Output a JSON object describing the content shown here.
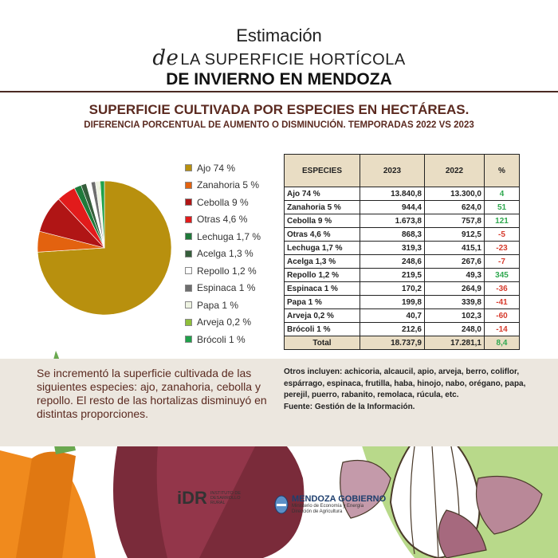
{
  "header": {
    "line1": "Estimación",
    "line2_prefix": "de",
    "line2": "LA SUPERFICIE HORTÍCOLA",
    "line3": "DE INVIERNO EN MENDOZA"
  },
  "chart_title": "SUPERFICIE CULTIVADA POR ESPECIES EN HECTÁREAS.",
  "chart_subtitle": "DIFERENCIA PORCENTUAL DE AUMENTO O DISMINUCIÓN. TEMPORADAS 2022 VS 2023",
  "chart_data": [
    {
      "type": "pie",
      "legend_position": "right",
      "slices": [
        {
          "label": "Ajo 74 %",
          "value": 74,
          "color": "#b8900e"
        },
        {
          "label": "Zanahoria 5 %",
          "value": 5,
          "color": "#e3620f"
        },
        {
          "label": "Cebolla 9 %",
          "value": 9,
          "color": "#b01515"
        },
        {
          "label": "Otras 4,6 %",
          "value": 4.6,
          "color": "#e21b1b"
        },
        {
          "label": "Lechuga 1,7 %",
          "value": 1.7,
          "color": "#1f7a3a"
        },
        {
          "label": "Acelga 1,3 %",
          "value": 1.3,
          "color": "#355e3b"
        },
        {
          "label": "Repollo 1,2 %",
          "value": 1.2,
          "color": "#ffffff"
        },
        {
          "label": "Espinaca 1 %",
          "value": 1,
          "color": "#6e6e6e"
        },
        {
          "label": "Papa 1 %",
          "value": 1,
          "color": "#eef3e2"
        },
        {
          "label": "Arveja 0,2 %",
          "value": 0.2,
          "color": "#8fbf3a"
        },
        {
          "label": "Brócoli 1 %",
          "value": 1,
          "color": "#1fa14a"
        }
      ]
    },
    {
      "type": "table",
      "columns": [
        "ESPECIES",
        "2023",
        "2022",
        "%"
      ],
      "rows": [
        {
          "species": "Ajo  74 %",
          "y2023": "13.840,8",
          "y2022": "13.300,0",
          "pct": "4",
          "trend": "pos"
        },
        {
          "species": "Zanahoria 5 %",
          "y2023": "944,4",
          "y2022": "624,0",
          "pct": "51",
          "trend": "pos"
        },
        {
          "species": "Cebolla 9 %",
          "y2023": "1.673,8",
          "y2022": "757,8",
          "pct": "121",
          "trend": "pos"
        },
        {
          "species": "Otras 4,6 %",
          "y2023": "868,3",
          "y2022": "912,5",
          "pct": "-5",
          "trend": "neg"
        },
        {
          "species": "Lechuga 1,7 %",
          "y2023": "319,3",
          "y2022": "415,1",
          "pct": "-23",
          "trend": "neg"
        },
        {
          "species": "Acelga 1,3 %",
          "y2023": "248,6",
          "y2022": "267,6",
          "pct": "-7",
          "trend": "neg"
        },
        {
          "species": "Repollo 1,2 %",
          "y2023": "219,5",
          "y2022": "49,3",
          "pct": "345",
          "trend": "pos"
        },
        {
          "species": "Espinaca 1 %",
          "y2023": "170,2",
          "y2022": "264,9",
          "pct": "-36",
          "trend": "neg"
        },
        {
          "species": "Papa 1 %",
          "y2023": "199,8",
          "y2022": "339,8",
          "pct": "-41",
          "trend": "neg"
        },
        {
          "species": "Arveja 0,2 %",
          "y2023": "40,7",
          "y2022": "102,3",
          "pct": "-60",
          "trend": "neg"
        },
        {
          "species": "Brócoli  1 %",
          "y2023": "212,6",
          "y2022": "248,0",
          "pct": "-14",
          "trend": "neg"
        }
      ],
      "total": {
        "species": "Total",
        "y2023": "18.737,9",
        "y2022": "17.281,1",
        "pct": "8,4",
        "trend": "pos"
      }
    }
  ],
  "summary": "Se incrementó la superficie cultivada de las siguientes especies: ajo, zanahoria, cebolla y repollo. El resto de las hortalizas disminuyó en distintas proporciones.",
  "notes": {
    "others": "Otros incluyen: achicoria, alcaucil, apio, arveja, berro, coliflor, espárrago, espinaca, frutilla, haba, hinojo, nabo, orégano, papa, perejil, puerro, rabanito, remolaca, rúcula, etc.",
    "source": "Fuente: Gestión de la Información."
  },
  "logos": {
    "idr_big": "iDR",
    "idr_small": "INSTITUTO DE DESARROLLO RURAL",
    "mza_brand": "MENDOZA GOBIERNO",
    "mza_sub1": "Ministerio de Economía y Energía",
    "mza_sub2": "Dirección de Agricultura"
  },
  "colors": {
    "positive": "#2fa84f",
    "negative": "#d63b2d",
    "title": "#5b2a20",
    "table_header_bg": "#e9ddc4"
  }
}
